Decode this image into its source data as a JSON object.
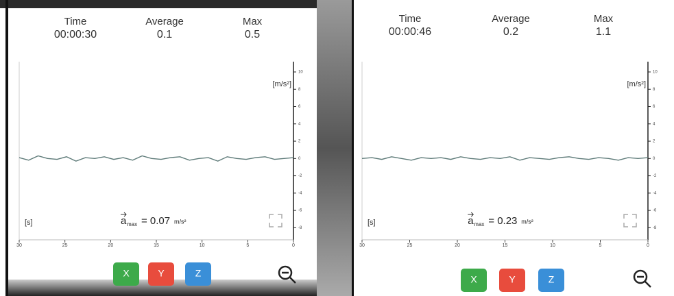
{
  "panels": [
    {
      "stats": [
        {
          "label": "Time",
          "value": "00:00:30"
        },
        {
          "label": "Average",
          "value": "0.1"
        },
        {
          "label": "Max",
          "value": "0.5"
        }
      ],
      "chart": {
        "y_unit": "[m/s²]",
        "x_unit": "[s]",
        "amax_symbol": "a",
        "amax_sub": "max",
        "amax_value": "= 0.07",
        "amax_unit": "m/s²",
        "ylim": [
          -9,
          10
        ],
        "yticks": [
          10,
          8,
          6,
          4,
          2,
          0,
          -2,
          -4,
          -6,
          -8
        ],
        "xlim": [
          30,
          0
        ],
        "xticks": [
          30,
          25,
          20,
          15,
          10,
          5,
          0
        ],
        "signal": [
          0.1,
          -0.2,
          0.3,
          0,
          -0.1,
          0.2,
          -0.3,
          0.1,
          0,
          0.2,
          -0.1,
          0.1,
          -0.2,
          0.3,
          0,
          -0.1,
          0.1,
          0.2,
          -0.2,
          0,
          0.1,
          -0.3,
          0.2,
          0,
          -0.1,
          0.1,
          0.2,
          -0.1,
          0,
          0.1
        ]
      },
      "buttons": [
        "X",
        "Y",
        "Z"
      ]
    },
    {
      "stats": [
        {
          "label": "Time",
          "value": "00:00:46"
        },
        {
          "label": "Average",
          "value": "0.2"
        },
        {
          "label": "Max",
          "value": "1.1"
        }
      ],
      "chart": {
        "y_unit": "[m/s²]",
        "x_unit": "[s]",
        "amax_symbol": "a",
        "amax_sub": "max",
        "amax_value": "= 0.23",
        "amax_unit": "m/s²",
        "ylim": [
          -9,
          10
        ],
        "yticks": [
          10,
          8,
          6,
          4,
          2,
          0,
          -2,
          -4,
          -6,
          -8
        ],
        "xlim": [
          30,
          0
        ],
        "xticks": [
          30,
          25,
          20,
          15,
          10,
          5,
          0
        ],
        "signal": [
          0,
          0.1,
          -0.1,
          0.2,
          0,
          -0.2,
          0.1,
          0,
          0.1,
          -0.1,
          0.2,
          0,
          -0.1,
          0.1,
          0,
          0.2,
          -0.2,
          0.1,
          0,
          -0.1,
          0.1,
          0.2,
          0,
          -0.1,
          0.1,
          0,
          -0.2,
          0.1,
          0,
          0.1
        ]
      },
      "buttons": [
        "X",
        "Y",
        "Z"
      ]
    }
  ]
}
